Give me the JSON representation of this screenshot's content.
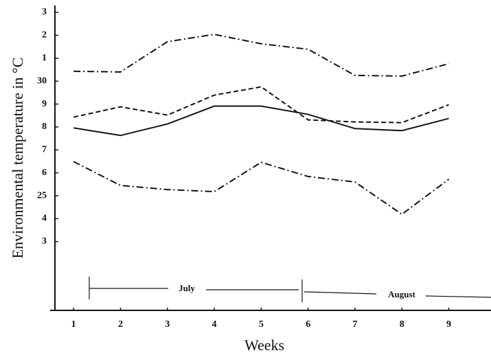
{
  "chart_data": {
    "type": "line",
    "x_label": "Weeks",
    "y_label": "Environmental temperature in °C",
    "x": [
      1,
      2,
      3,
      4,
      5,
      6,
      7,
      8,
      9
    ],
    "xlim": [
      0.5,
      9.9
    ],
    "xticks": [
      1,
      2,
      3,
      4,
      5,
      6,
      7,
      8,
      9
    ],
    "ylim": [
      20,
      33.3
    ],
    "yticks": [
      {
        "value": 23,
        "label": "3"
      },
      {
        "value": 24,
        "label": "4"
      },
      25,
      {
        "value": 26,
        "label": "6"
      },
      {
        "value": 27,
        "label": "7"
      },
      {
        "value": 28,
        "label": "8"
      },
      {
        "value": 29,
        "label": "9"
      },
      30,
      {
        "value": 31,
        "label": "1"
      },
      {
        "value": 32,
        "label": "2"
      },
      {
        "value": 33,
        "label": "3"
      }
    ],
    "months": [
      "July",
      "August"
    ],
    "series": [
      {
        "color": "#111111",
        "dash": "dashdot",
        "values": [
          30.43,
          30.4,
          31.72,
          32.04,
          31.63,
          31.39,
          30.25,
          30.22,
          30.76
        ]
      },
      {
        "color": "#111111",
        "dash": "dashed",
        "values": [
          28.43,
          28.88,
          28.52,
          29.39,
          29.75,
          28.31,
          28.22,
          28.19,
          28.97
        ]
      },
      {
        "color": "#111111",
        "dash": "solid",
        "values": [
          27.96,
          27.63,
          28.13,
          28.91,
          28.91,
          28.55,
          27.93,
          27.84,
          28.37
        ]
      },
      {
        "color": "#111111",
        "dash": "dashdot",
        "values": [
          26.49,
          25.45,
          25.27,
          25.18,
          26.46,
          25.84,
          25.6,
          24.19,
          25.72
        ]
      }
    ]
  }
}
